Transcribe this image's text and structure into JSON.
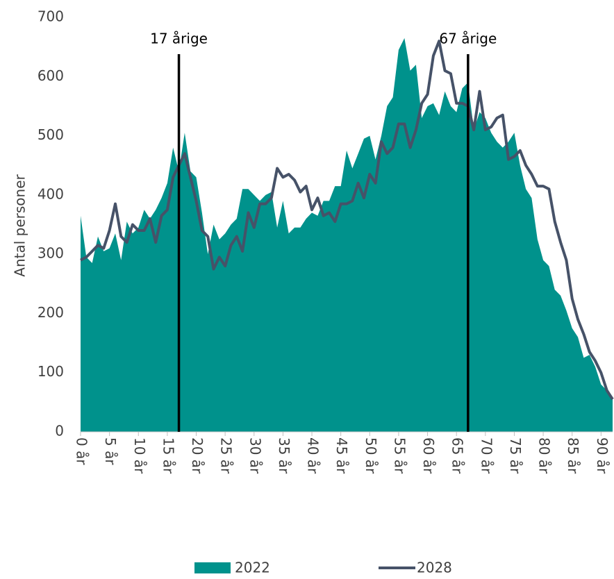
{
  "chart_data": {
    "type": "area_line",
    "y_label": "Antal personer",
    "categories": [
      "0 år",
      null,
      null,
      null,
      null,
      "5 år",
      null,
      null,
      null,
      null,
      "10 år",
      null,
      null,
      null,
      null,
      "15 år",
      null,
      null,
      null,
      null,
      "20 år",
      null,
      null,
      null,
      null,
      "25 år",
      null,
      null,
      null,
      null,
      "30 år",
      null,
      null,
      null,
      null,
      "35 år",
      null,
      null,
      null,
      null,
      "40 år",
      null,
      null,
      null,
      null,
      "45 år",
      null,
      null,
      null,
      null,
      "50 år",
      null,
      null,
      null,
      null,
      "55 år",
      null,
      null,
      null,
      null,
      "60 år",
      null,
      null,
      null,
      null,
      "65 år",
      null,
      null,
      null,
      null,
      "70 år",
      null,
      null,
      null,
      null,
      "75 år",
      null,
      null,
      null,
      null,
      "80 år",
      null,
      null,
      null,
      null,
      "85 år",
      null,
      null,
      null,
      null,
      "90 år",
      null,
      null
    ],
    "series": [
      {
        "name": "2022",
        "kind": "area",
        "color": "#00928c",
        "values": [
          365,
          295,
          285,
          330,
          305,
          310,
          335,
          290,
          355,
          335,
          345,
          375,
          360,
          375,
          395,
          420,
          480,
          440,
          505,
          440,
          430,
          370,
          300,
          350,
          325,
          335,
          350,
          360,
          410,
          410,
          400,
          390,
          400,
          405,
          345,
          390,
          335,
          345,
          345,
          360,
          370,
          365,
          390,
          390,
          415,
          415,
          475,
          445,
          470,
          495,
          500,
          460,
          500,
          550,
          565,
          645,
          665,
          610,
          620,
          530,
          550,
          555,
          535,
          575,
          550,
          540,
          580,
          590,
          510,
          540,
          530,
          505,
          490,
          480,
          490,
          505,
          450,
          410,
          395,
          325,
          290,
          280,
          240,
          230,
          205,
          175,
          160,
          125,
          130,
          110,
          80,
          70,
          55
        ]
      },
      {
        "name": "2028",
        "kind": "line",
        "color": "#465268",
        "values": [
          290,
          295,
          305,
          315,
          310,
          340,
          385,
          330,
          320,
          350,
          340,
          340,
          360,
          320,
          365,
          375,
          430,
          450,
          470,
          430,
          390,
          340,
          330,
          275,
          295,
          280,
          315,
          330,
          305,
          370,
          345,
          385,
          385,
          395,
          445,
          430,
          435,
          425,
          405,
          415,
          375,
          395,
          365,
          370,
          355,
          385,
          385,
          390,
          420,
          395,
          435,
          420,
          490,
          470,
          480,
          520,
          520,
          480,
          510,
          555,
          570,
          635,
          660,
          610,
          605,
          555,
          555,
          550,
          510,
          575,
          510,
          515,
          530,
          535,
          460,
          465,
          475,
          450,
          435,
          415,
          415,
          410,
          355,
          320,
          290,
          225,
          190,
          165,
          135,
          120,
          100,
          70,
          55
        ]
      }
    ],
    "annotations": [
      {
        "text": "17 årige",
        "x": 17
      },
      {
        "text": "67 årige",
        "x": 67
      }
    ],
    "ylim": [
      0,
      700
    ],
    "yticks": [
      0,
      100,
      200,
      300,
      400,
      500,
      600,
      700
    ]
  }
}
